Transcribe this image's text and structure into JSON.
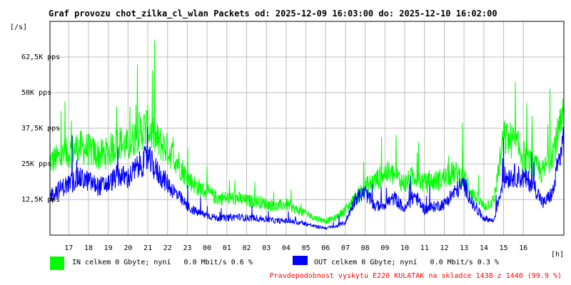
{
  "chart_data": {
    "type": "line",
    "title": "Graf provozu chot_zilka_cl_wlan Packets od: 2025-12-09 16:03:00 do: 2025-12-10 16:02:00",
    "ylabel": "[/s]",
    "xlabel": "[h]",
    "ylim": [
      0,
      75000
    ],
    "y_ticks": [
      {
        "value": 12500,
        "label": "12,5K pps"
      },
      {
        "value": 25000,
        "label": "25K pps"
      },
      {
        "value": 37500,
        "label": "37,5K pps"
      },
      {
        "value": 50000,
        "label": "50K pps"
      },
      {
        "value": 62500,
        "label": "62,5K pps"
      }
    ],
    "x_ticks": [
      "17",
      "18",
      "19",
      "20",
      "21",
      "22",
      "23",
      "00",
      "01",
      "02",
      "03",
      "04",
      "05",
      "06",
      "07",
      "08",
      "09",
      "10",
      "11",
      "12",
      "13",
      "14",
      "15",
      "16"
    ],
    "grid": true,
    "x_hours": [
      16.05,
      16.5,
      17,
      17.5,
      18,
      18.5,
      19,
      19.5,
      20,
      20.5,
      21,
      21.5,
      22,
      22.5,
      23,
      23.5,
      24,
      24.5,
      25,
      25.5,
      26,
      26.5,
      27,
      27.5,
      28,
      28.5,
      29,
      29.5,
      30,
      30.5,
      31,
      31.5,
      32,
      32.5,
      33,
      33.5,
      34,
      34.5,
      35,
      35.5,
      36,
      36.5,
      37,
      37.5,
      38,
      38.5,
      39,
      39.5,
      40,
      40.5,
      41,
      41.5,
      42
    ],
    "series": [
      {
        "name": "IN",
        "color": "#00ff00",
        "values": [
          26000,
          27000,
          29000,
          31000,
          30000,
          28000,
          29000,
          33000,
          31000,
          36000,
          38000,
          33000,
          30000,
          26000,
          20000,
          17000,
          15000,
          13000,
          13000,
          13000,
          12000,
          12000,
          11000,
          10000,
          11000,
          9000,
          7500,
          6000,
          5000,
          6000,
          9000,
          13000,
          17000,
          19000,
          22000,
          21000,
          18000,
          21000,
          18000,
          19000,
          20000,
          22000,
          20000,
          14000,
          10000,
          12000,
          34000,
          33000,
          28000,
          24000,
          22000,
          30000,
          40000
        ]
      },
      {
        "name": "OUT",
        "color": "#0000ff",
        "values": [
          14000,
          16000,
          18000,
          20000,
          19000,
          17000,
          18000,
          21000,
          20000,
          24000,
          27000,
          22000,
          18000,
          14000,
          10000,
          8000,
          7000,
          6000,
          6000,
          6500,
          6000,
          6000,
          5500,
          5000,
          5000,
          4500,
          4000,
          3000,
          2500,
          3000,
          4500,
          13000,
          15000,
          10000,
          11000,
          13000,
          9000,
          14000,
          9000,
          10000,
          11000,
          15000,
          18000,
          10000,
          6000,
          5000,
          20000,
          21000,
          20000,
          18000,
          11000,
          15000,
          33000
        ]
      }
    ]
  },
  "legend": {
    "in_color": "#00ff00",
    "in_text": "IN celkem 0 Gbyte; nyní   0.0 Mbit/s 0.6 %",
    "out_color": "#0000ff",
    "out_text": "OUT celkem 0 Gbyte; nyní   0.0 Mbit/s 0.3 %"
  },
  "footer": {
    "note": "Pravdepodobnost vyskytu E220 KULATAK na skladce 1438 z 1440 (99.9 %)",
    "note_color": "#ff0000"
  }
}
